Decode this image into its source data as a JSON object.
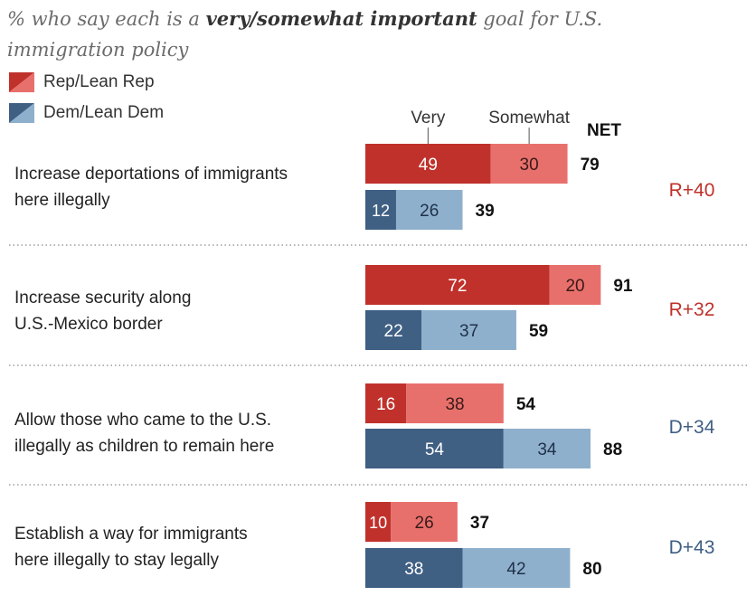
{
  "subtitle": {
    "prefix": "% who say each is a ",
    "bold": "very/somewhat important",
    "suffix": " goal for U.S. immigration policy"
  },
  "legend": [
    {
      "name": "Rep/Lean Rep",
      "color_very": "#c0312b",
      "color_somewhat": "#e8706c"
    },
    {
      "name": "Dem/Lean Dem",
      "color_very": "#3f5f83",
      "color_somewhat": "#8fb0cc"
    }
  ],
  "column_headers": {
    "very": "Very",
    "somewhat": "Somewhat",
    "net": "NET"
  },
  "chart_data": {
    "type": "bar",
    "stacked": true,
    "orientation": "horizontal",
    "categories": [
      "Increase deportations of immigrants here illegally",
      "Increase security along U.S.-Mexico border",
      "Allow those who came to the U.S. illegally as children to remain here",
      "Establish a way for immigrants here illegally to stay legally"
    ],
    "category_lines": [
      [
        "Increase deportations of immigrants",
        "here illegally"
      ],
      [
        "Increase security along",
        "U.S.-Mexico border"
      ],
      [
        "Allow those who came to the U.S.",
        "illegally as children to remain here"
      ],
      [
        "Establish a way for immigrants",
        "here illegally to stay legally"
      ]
    ],
    "series": [
      {
        "name": "Rep/Lean Rep",
        "very": [
          49,
          72,
          16,
          10
        ],
        "somewhat": [
          30,
          20,
          38,
          26
        ],
        "net": [
          79,
          91,
          54,
          37
        ]
      },
      {
        "name": "Dem/Lean Dem",
        "very": [
          12,
          22,
          54,
          38
        ],
        "somewhat": [
          26,
          37,
          34,
          42
        ],
        "net": [
          39,
          59,
          88,
          80
        ]
      }
    ],
    "gaps": [
      {
        "label": "R+40",
        "party": "rep"
      },
      {
        "label": "R+32",
        "party": "rep"
      },
      {
        "label": "D+34",
        "party": "dem"
      },
      {
        "label": "D+43",
        "party": "dem"
      }
    ],
    "colors": {
      "rep_very": "#c0312b",
      "rep_somewhat": "#e8706c",
      "dem_very": "#3f5f83",
      "dem_somewhat": "#8fb0cc",
      "gap_rep": "#c0312b",
      "gap_dem": "#3f5f83"
    }
  }
}
